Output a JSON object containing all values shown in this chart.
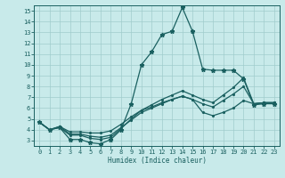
{
  "xlabel": "Humidex (Indice chaleur)",
  "ylabel": "",
  "bg_color": "#c8eaea",
  "grid_color": "#a0cccc",
  "line_color": "#1a6060",
  "xlim": [
    -0.5,
    23.5
  ],
  "ylim": [
    2.5,
    15.5
  ],
  "xticks": [
    0,
    1,
    2,
    3,
    4,
    5,
    6,
    7,
    8,
    9,
    10,
    11,
    12,
    13,
    14,
    15,
    16,
    17,
    18,
    19,
    20,
    21,
    22,
    23
  ],
  "yticks": [
    3,
    4,
    5,
    6,
    7,
    8,
    9,
    10,
    11,
    12,
    13,
    14,
    15
  ],
  "series": [
    {
      "x": [
        0,
        1,
        2,
        3,
        4,
        5,
        6,
        7,
        8,
        9,
        10,
        11,
        12,
        13,
        14,
        15,
        16,
        17,
        18,
        19,
        20,
        21,
        22,
        23
      ],
      "y": [
        4.7,
        4.0,
        4.2,
        3.1,
        3.1,
        2.8,
        2.7,
        3.1,
        4.0,
        6.4,
        10.0,
        11.2,
        12.8,
        13.1,
        15.3,
        13.1,
        9.6,
        9.5,
        9.5,
        9.5,
        8.7,
        6.3,
        6.4,
        6.4
      ],
      "marker": "*",
      "markersize": 3.5,
      "linewidth": 0.9
    },
    {
      "x": [
        0,
        1,
        2,
        3,
        4,
        5,
        6,
        7,
        8,
        9,
        10,
        11,
        12,
        13,
        14,
        15,
        16,
        17,
        18,
        19,
        20,
        21,
        22,
        23
      ],
      "y": [
        4.7,
        4.0,
        4.2,
        3.5,
        3.5,
        3.2,
        3.1,
        3.3,
        4.1,
        5.0,
        5.8,
        6.3,
        6.8,
        7.2,
        7.6,
        7.2,
        6.8,
        6.5,
        7.2,
        7.9,
        8.8,
        6.4,
        6.5,
        6.5
      ],
      "marker": ".",
      "markersize": 2.5,
      "linewidth": 0.9
    },
    {
      "x": [
        0,
        1,
        2,
        3,
        4,
        5,
        6,
        7,
        8,
        9,
        10,
        11,
        12,
        13,
        14,
        15,
        16,
        17,
        18,
        19,
        20,
        21,
        22,
        23
      ],
      "y": [
        4.7,
        4.0,
        4.3,
        3.6,
        3.6,
        3.4,
        3.3,
        3.5,
        4.2,
        4.9,
        5.6,
        6.0,
        6.4,
        6.8,
        7.1,
        6.8,
        6.4,
        6.1,
        6.7,
        7.3,
        8.0,
        6.4,
        6.5,
        6.5
      ],
      "marker": ".",
      "markersize": 2.5,
      "linewidth": 0.9
    },
    {
      "x": [
        0,
        1,
        2,
        3,
        4,
        5,
        6,
        7,
        8,
        9,
        10,
        11,
        12,
        13,
        14,
        15,
        16,
        17,
        18,
        19,
        20,
        21,
        22,
        23
      ],
      "y": [
        4.7,
        4.0,
        4.3,
        3.8,
        3.8,
        3.7,
        3.7,
        3.9,
        4.5,
        5.2,
        5.8,
        6.1,
        6.5,
        6.8,
        7.1,
        6.8,
        5.6,
        5.3,
        5.6,
        6.0,
        6.7,
        6.4,
        6.5,
        6.5
      ],
      "marker": ".",
      "markersize": 2.5,
      "linewidth": 0.9
    }
  ]
}
